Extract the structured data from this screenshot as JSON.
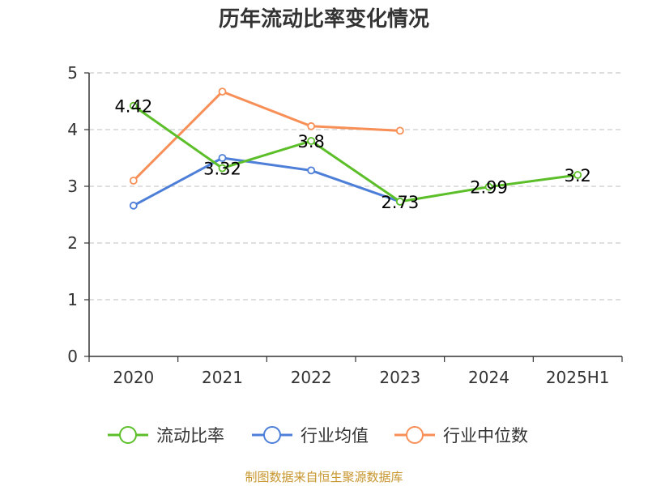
{
  "chart_data": {
    "type": "line",
    "title": "历年流动比率变化情况",
    "categories": [
      "2020",
      "2021",
      "2022",
      "2023",
      "2024",
      "2025H1"
    ],
    "ylim": [
      0,
      5
    ],
    "yticks": [
      "0",
      "1",
      "2",
      "3",
      "4",
      "5"
    ],
    "grid": true,
    "legend_position": "bottom",
    "series": [
      {
        "name": "流动比率",
        "color": "#5cbf2a",
        "values": [
          4.42,
          3.32,
          3.8,
          2.73,
          2.99,
          3.2
        ],
        "labels": [
          "4.42",
          "3.32",
          "3.8",
          "2.73",
          "2.99",
          "3.2"
        ]
      },
      {
        "name": "行业均值",
        "color": "#4e7fd8",
        "values": [
          2.66,
          3.5,
          3.28,
          2.73,
          null,
          null
        ]
      },
      {
        "name": "行业中位数",
        "color": "#f78f57",
        "values": [
          3.1,
          4.67,
          4.06,
          3.98,
          null,
          null
        ]
      }
    ]
  },
  "source": "制图数据来自恒生聚源数据库"
}
